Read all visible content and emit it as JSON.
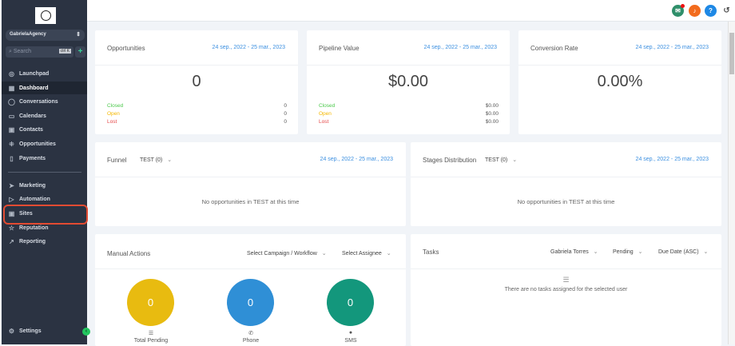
{
  "sidebar": {
    "agency": "GabrielaAgency",
    "search_placeholder": "Search",
    "search_shortcut": "ctrl K",
    "items": [
      {
        "label": "Launchpad",
        "icon": "rocket-icon"
      },
      {
        "label": "Dashboard",
        "icon": "grid-icon",
        "active": true
      },
      {
        "label": "Conversations",
        "icon": "chat-icon"
      },
      {
        "label": "Calendars",
        "icon": "calendar-icon"
      },
      {
        "label": "Contacts",
        "icon": "contacts-icon"
      },
      {
        "label": "Opportunities",
        "icon": "opportunities-icon"
      },
      {
        "label": "Payments",
        "icon": "payments-icon"
      }
    ],
    "items2": [
      {
        "label": "Marketing",
        "icon": "send-icon"
      },
      {
        "label": "Automation",
        "icon": "automation-icon"
      },
      {
        "label": "Sites",
        "icon": "sites-icon",
        "highlighted": true
      },
      {
        "label": "Reputation",
        "icon": "star-icon"
      },
      {
        "label": "Reporting",
        "icon": "trend-icon"
      }
    ],
    "settings": "Settings"
  },
  "topbar": {
    "icons": [
      "megaphone-icon",
      "bell-icon",
      "help-icon",
      "history-icon"
    ],
    "help": "?"
  },
  "date_range": "24 sep., 2022 - 25 mar., 2023",
  "opportunities": {
    "title": "Opportunities",
    "value": "0",
    "closed": "Closed",
    "closed_v": "0",
    "open": "Open",
    "open_v": "0",
    "lost": "Lost",
    "lost_v": "0"
  },
  "pipeline": {
    "title": "Pipeline Value",
    "value": "$0.00",
    "closed": "Closed",
    "closed_v": "$0.00",
    "open": "Open",
    "open_v": "$0.00",
    "lost": "Lost",
    "lost_v": "$0.00"
  },
  "conversion": {
    "title": "Conversion Rate",
    "value": "0.00%"
  },
  "funnel": {
    "title": "Funnel",
    "pipeline": "TEST (0)",
    "empty": "No opportunities in TEST at this time"
  },
  "stages": {
    "title": "Stages Distribution",
    "pipeline": "TEST (0)",
    "empty": "No opportunities in TEST at this time"
  },
  "manual": {
    "title": "Manual Actions",
    "campaign": "Select Campaign / Workflow",
    "assignee": "Select Assignee",
    "stats": [
      {
        "value": "0",
        "label": "Total Pending",
        "color": "#e8bb10"
      },
      {
        "value": "0",
        "label": "Phone",
        "color": "#2f8fd6"
      },
      {
        "value": "0",
        "label": "SMS",
        "color": "#13977c"
      }
    ]
  },
  "tasks": {
    "title": "Tasks",
    "user": "Gabriela Torres",
    "status": "Pending",
    "sort": "Due Date (ASC)",
    "empty": "There are no tasks assigned for the selected user"
  },
  "colors": {
    "closed": "#4cc94c",
    "open": "#f5b800",
    "lost": "#e54848",
    "date": "#3b8fe0",
    "sidebar": "#2b3342"
  }
}
